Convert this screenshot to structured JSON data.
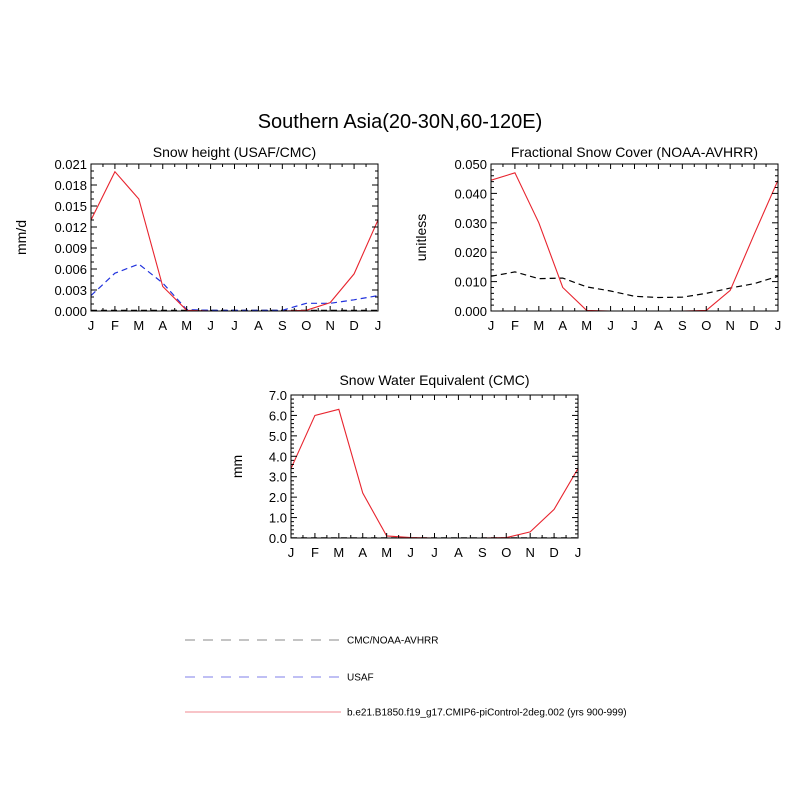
{
  "figure": {
    "title": "Southern Asia(20-30N,60-120E)"
  },
  "colors": {
    "model": "#e8242e",
    "usaf": "#2233dd",
    "cmc": "#000000"
  },
  "legend": {
    "entries": [
      {
        "label": "CMC/NOAA-AVHRR",
        "color": "#a0a0a0",
        "dash": "dashed"
      },
      {
        "label": "USAF",
        "color": "#9999ee",
        "dash": "dashed"
      },
      {
        "label": "b.e21.B1850.f19_g17.CMIP6-piControl-2deg.002 (yrs 900-999)",
        "color": "#f4a0a8",
        "dash": "solid"
      }
    ]
  },
  "chart_data": [
    {
      "type": "line",
      "title": "Snow height (USAF/CMC)",
      "ylabel": "mm/d",
      "xlabel": "",
      "categories": [
        "J",
        "F",
        "M",
        "A",
        "M",
        "J",
        "J",
        "A",
        "S",
        "O",
        "N",
        "D",
        "J"
      ],
      "ylim": [
        0,
        0.021
      ],
      "yticks": [
        "0.000",
        "0.003",
        "0.006",
        "0.009",
        "0.012",
        "0.015",
        "0.018",
        "0.021"
      ],
      "series": [
        {
          "key": "model",
          "values": [
            0.013,
            0.0199,
            0.016,
            0.0035,
            0.0001,
            0.0,
            0.0,
            0.0,
            0.0,
            0.0001,
            0.0012,
            0.0053,
            0.013
          ]
        },
        {
          "key": "usaf",
          "values": [
            0.0022,
            0.0054,
            0.0067,
            0.004,
            0.0002,
            0.0001,
            0.0001,
            0.0001,
            0.0001,
            0.0011,
            0.0011,
            0.0016,
            0.0022
          ]
        },
        {
          "key": "cmc",
          "values": [
            0.0001,
            0.0001,
            0.0001,
            0.0001,
            0.0001,
            0.0001,
            0.0001,
            0.0001,
            0.0001,
            0.0001,
            0.0001,
            0.0001,
            0.0001
          ]
        }
      ]
    },
    {
      "type": "line",
      "title": "Fractional Snow Cover (NOAA-AVHRR)",
      "ylabel": "unitless",
      "xlabel": "",
      "categories": [
        "J",
        "F",
        "M",
        "A",
        "M",
        "J",
        "J",
        "A",
        "S",
        "O",
        "N",
        "D",
        "J"
      ],
      "ylim": [
        0,
        0.05
      ],
      "yticks": [
        "0.000",
        "0.010",
        "0.020",
        "0.030",
        "0.040",
        "0.050"
      ],
      "series": [
        {
          "key": "model",
          "values": [
            0.0445,
            0.047,
            0.03,
            0.008,
            0.0002,
            0.0,
            0.0,
            0.0,
            0.0,
            0.0002,
            0.007,
            0.026,
            0.0445
          ]
        },
        {
          "key": "cmc",
          "values": [
            0.0118,
            0.0133,
            0.011,
            0.0112,
            0.0082,
            0.0068,
            0.005,
            0.0046,
            0.0047,
            0.006,
            0.0078,
            0.0093,
            0.0118
          ]
        }
      ]
    },
    {
      "type": "line",
      "title": "Snow Water Equivalent (CMC)",
      "ylabel": "mm",
      "xlabel": "",
      "categories": [
        "J",
        "F",
        "M",
        "A",
        "M",
        "J",
        "J",
        "A",
        "S",
        "O",
        "N",
        "D",
        "J"
      ],
      "ylim": [
        0,
        7.0
      ],
      "yticks": [
        "0.0",
        "1.0",
        "2.0",
        "3.0",
        "4.0",
        "5.0",
        "6.0",
        "7.0"
      ],
      "series": [
        {
          "key": "model",
          "values": [
            3.4,
            6.0,
            6.3,
            2.2,
            0.1,
            0.02,
            0.0,
            0.0,
            0.0,
            0.02,
            0.3,
            1.4,
            3.4
          ]
        },
        {
          "key": "cmc",
          "values": [
            0.01,
            0.01,
            0.01,
            0.01,
            0.01,
            0.01,
            0.01,
            0.01,
            0.01,
            0.01,
            0.01,
            0.01,
            0.01
          ]
        }
      ]
    }
  ]
}
